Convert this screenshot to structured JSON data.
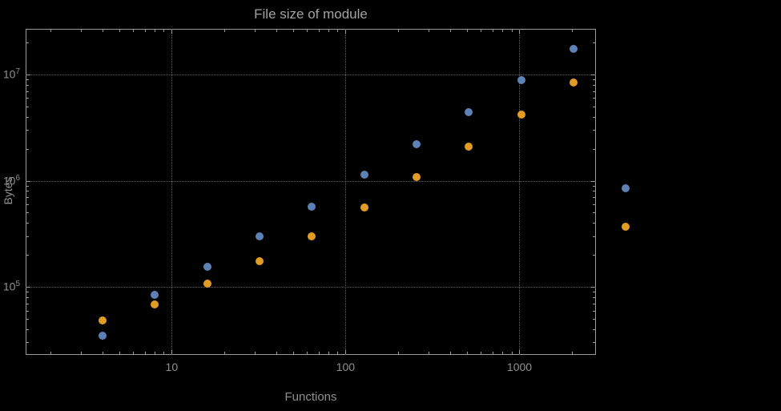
{
  "chart_data": {
    "type": "scatter",
    "title": "File size of module",
    "xlabel": "Functions",
    "ylabel": "Bytes",
    "x_scale": "log",
    "y_scale": "log",
    "grid": "dotted",
    "legend": "none",
    "x_ticks": [
      10,
      100,
      1000
    ],
    "y_ticks": [
      100000,
      1000000,
      10000000
    ],
    "x_range_log10": [
      0.16,
      3.44
    ],
    "y_range_log10": [
      4.36,
      7.43
    ],
    "x": [
      4,
      8,
      16,
      32,
      64,
      128,
      256,
      512,
      1024,
      2048,
      4096
    ],
    "series": [
      {
        "name": "series-blue",
        "color": "#5e81b5",
        "values": [
          35000,
          85000,
          155000,
          300000,
          570000,
          1150000,
          2200000,
          4400000,
          8800000,
          17500000,
          850000
        ]
      },
      {
        "name": "series-orange",
        "color": "#e19c24",
        "values": [
          48000,
          68000,
          108000,
          175000,
          300000,
          560000,
          1080000,
          2100000,
          4200000,
          8400000,
          370000
        ]
      }
    ],
    "colors": {
      "background": "#000000",
      "title": "#a3a3a3",
      "axis_text": "#8f8f8f",
      "frame": "#9b9b9b",
      "grid": "#5f5f5f"
    }
  }
}
